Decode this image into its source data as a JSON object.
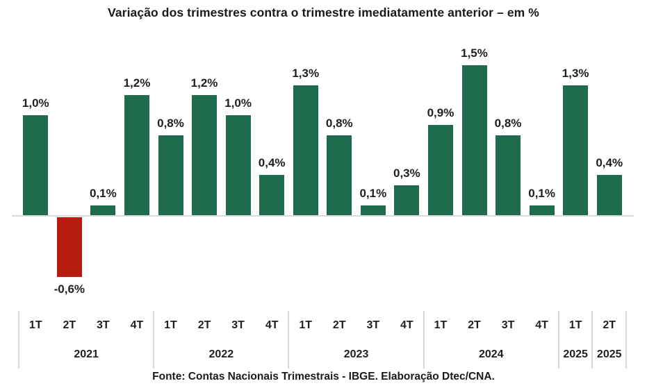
{
  "chart_data": {
    "type": "bar",
    "title": "Variação dos trimestres contra o trimestre imediatamente anterior – em %",
    "unit": "%",
    "decimal_separator": ",",
    "ylim": [
      -0.8,
      1.7
    ],
    "grid": false,
    "legend": "none",
    "colors": {
      "positive": "#1e6b4e",
      "negative": "#b71c10",
      "axis": "#d9d9d9"
    },
    "points": [
      {
        "quarter": "1T",
        "year": "2021",
        "value": 1.0,
        "label": "1,0%"
      },
      {
        "quarter": "2T",
        "year": "2021",
        "value": -0.6,
        "label": "-0,6%"
      },
      {
        "quarter": "3T",
        "year": "2021",
        "value": 0.1,
        "label": "0,1%"
      },
      {
        "quarter": "4T",
        "year": "2021",
        "value": 1.2,
        "label": "1,2%"
      },
      {
        "quarter": "1T",
        "year": "2022",
        "value": 0.8,
        "label": "0,8%"
      },
      {
        "quarter": "2T",
        "year": "2022",
        "value": 1.2,
        "label": "1,2%"
      },
      {
        "quarter": "3T",
        "year": "2022",
        "value": 1.0,
        "label": "1,0%"
      },
      {
        "quarter": "4T",
        "year": "2022",
        "value": 0.4,
        "label": "0,4%"
      },
      {
        "quarter": "1T",
        "year": "2023",
        "value": 1.3,
        "label": "1,3%"
      },
      {
        "quarter": "2T",
        "year": "2023",
        "value": 0.8,
        "label": "0,8%"
      },
      {
        "quarter": "3T",
        "year": "2023",
        "value": 0.1,
        "label": "0,1%"
      },
      {
        "quarter": "4T",
        "year": "2023",
        "value": 0.3,
        "label": "0,3%"
      },
      {
        "quarter": "1T",
        "year": "2024",
        "value": 0.9,
        "label": "0,9%"
      },
      {
        "quarter": "2T",
        "year": "2024",
        "value": 1.5,
        "label": "1,5%"
      },
      {
        "quarter": "3T",
        "year": "2024",
        "value": 0.8,
        "label": "0,8%"
      },
      {
        "quarter": "4T",
        "year": "2024",
        "value": 0.1,
        "label": "0,1%"
      },
      {
        "quarter": "1T",
        "year": "2025",
        "value": 1.3,
        "label": "1,3%"
      },
      {
        "quarter": "2T",
        "year": "2025",
        "value": 0.4,
        "label": "0,4%"
      }
    ],
    "groups": [
      {
        "year": "2021",
        "quarters": [
          "1T",
          "2T",
          "3T",
          "4T"
        ]
      },
      {
        "year": "2022",
        "quarters": [
          "1T",
          "2T",
          "3T",
          "4T"
        ]
      },
      {
        "year": "2023",
        "quarters": [
          "1T",
          "2T",
          "3T",
          "4T"
        ]
      },
      {
        "year": "2024",
        "quarters": [
          "1T",
          "2T",
          "3T",
          "4T"
        ]
      },
      {
        "year": "2025",
        "quarters": [
          "1T"
        ]
      },
      {
        "year": "2025",
        "quarters": [
          "2T"
        ]
      }
    ],
    "source": "Fonte: Contas Nacionais Trimestrais - IBGE. Elaboração Dtec/CNA."
  }
}
